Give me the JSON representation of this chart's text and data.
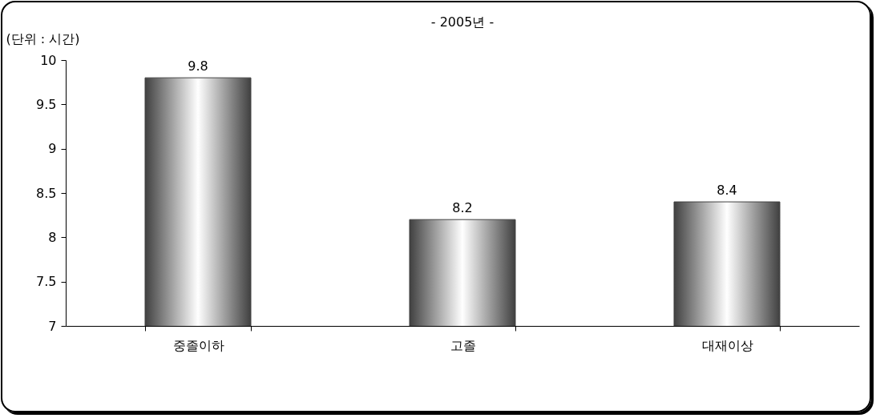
{
  "chart_data": {
    "type": "bar",
    "title": "- 2005년 -",
    "ylabel": "(단위 : 시간)",
    "categories": [
      "중졸이하",
      "고졸",
      "대재이상"
    ],
    "values": [
      9.8,
      8.2,
      8.4
    ],
    "color": "#404040",
    "ylim": [
      7,
      10
    ],
    "yticks": [
      7,
      7.5,
      8,
      8.5,
      9,
      9.5,
      10
    ],
    "data_labels": true,
    "grid": false
  }
}
